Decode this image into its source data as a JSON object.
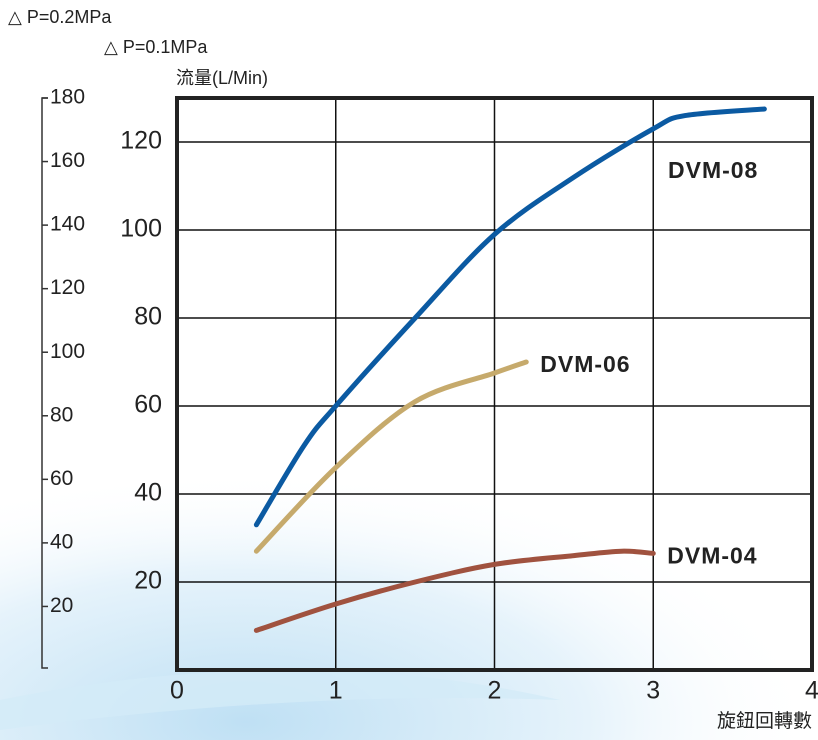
{
  "chart_data": {
    "type": "line",
    "y2_label": "△ P=0.2MPa",
    "y_axis_note": "△ P=0.1MPa",
    "y_label": "流量(L/Min)",
    "x_label": "旋鈕回轉數",
    "xlim": [
      0,
      4
    ],
    "xticks": [
      0,
      1,
      2,
      3,
      4
    ],
    "ylim": [
      0,
      130
    ],
    "yticks": [
      20,
      40,
      60,
      80,
      100,
      120
    ],
    "y2lim": [
      0,
      180
    ],
    "y2ticks": [
      20,
      40,
      60,
      80,
      100,
      120,
      140,
      160,
      180
    ],
    "grid": true,
    "series": [
      {
        "name": "DVM-08",
        "color": "#0b5aa2",
        "x": [
          0.5,
          0.8,
          1.0,
          1.5,
          2.0,
          2.5,
          3.0,
          3.2,
          3.7
        ],
        "values": [
          33,
          51,
          60,
          80,
          99,
          112,
          123,
          126,
          127.5
        ]
      },
      {
        "name": "DVM-06",
        "color": "#c6aa6c",
        "x": [
          0.5,
          1.0,
          1.5,
          2.0,
          2.2
        ],
        "values": [
          27,
          46,
          61,
          67.5,
          70
        ]
      },
      {
        "name": "DVM-04",
        "color": "#a0523f",
        "x": [
          0.5,
          1.0,
          1.5,
          2.0,
          2.5,
          2.8,
          3.0
        ],
        "values": [
          9,
          15,
          20,
          24,
          26,
          27,
          26.5
        ]
      }
    ]
  }
}
